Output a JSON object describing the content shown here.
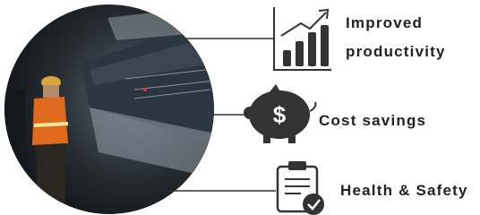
{
  "items": [
    {
      "label_lines": [
        "Improved",
        "productivity"
      ]
    },
    {
      "label_lines": [
        "Cost savings"
      ]
    },
    {
      "label_lines": [
        "Health & Safety"
      ]
    }
  ]
}
